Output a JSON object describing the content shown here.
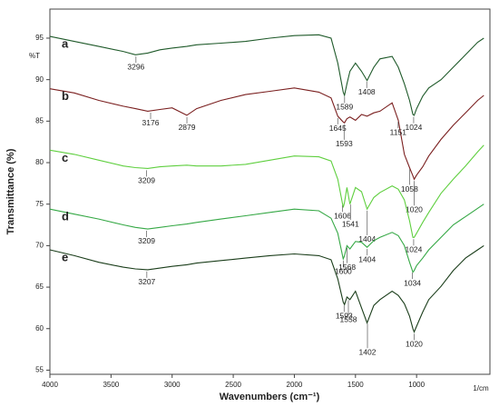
{
  "chart_data": {
    "type": "line",
    "x_label": "Wavenumbers (cm⁻¹)",
    "y_label": "Transmittance (%)",
    "y_unit_label": "%T",
    "x_unit_label": "1/cm",
    "xlim": [
      4000,
      400
    ],
    "ylim": [
      54.5,
      98.5
    ],
    "xticks": [
      4000,
      3500,
      3000,
      2500,
      2000,
      1500,
      1000
    ],
    "yticks": [
      55,
      60,
      65,
      70,
      75,
      80,
      85,
      90,
      95
    ],
    "x": [
      4000,
      3800,
      3600,
      3400,
      3300,
      3200,
      3100,
      3000,
      2880,
      2800,
      2600,
      2400,
      2200,
      2000,
      1800,
      1700,
      1645,
      1600,
      1590,
      1570,
      1545,
      1500,
      1450,
      1405,
      1350,
      1300,
      1200,
      1150,
      1100,
      1058,
      1030,
      1020,
      1000,
      950,
      900,
      800,
      700,
      600,
      500,
      450
    ],
    "series": [
      {
        "name": "a",
        "color": "#1f5a2a",
        "peaks": [
          3296,
          1589,
          1408,
          1024
        ],
        "values": [
          95.2,
          94.6,
          94,
          93.4,
          93.0,
          93.2,
          93.6,
          93.8,
          94,
          94.2,
          94.4,
          94.6,
          95,
          95.3,
          95.4,
          95,
          92,
          88.5,
          88.1,
          89.5,
          91,
          92,
          91,
          89.9,
          91.5,
          92.5,
          92.8,
          91.5,
          89.5,
          87.5,
          85.8,
          85.7,
          86.5,
          88,
          89,
          90,
          91.5,
          93,
          94.5,
          95
        ]
      },
      {
        "name": "b",
        "color": "#7a1f1f",
        "peaks": [
          3176,
          2879,
          1645,
          1593,
          1151,
          1058,
          1020
        ],
        "values": [
          88.9,
          88.4,
          87.5,
          86.8,
          86.5,
          86.2,
          86.4,
          86.6,
          85.7,
          86.5,
          87.5,
          88.2,
          88.6,
          89,
          88.5,
          87.8,
          85.6,
          84.9,
          84.8,
          85.3,
          85.5,
          85.1,
          85.8,
          85.6,
          86,
          86.2,
          87.2,
          85.1,
          81,
          79.4,
          78.4,
          78,
          78.5,
          79.5,
          80.8,
          82.8,
          84.5,
          86,
          87.5,
          88.1
        ]
      },
      {
        "name": "c",
        "color": "#5fcf3f",
        "peaks": [
          3209,
          1606,
          1541,
          1404,
          1024
        ],
        "values": [
          81.5,
          81,
          80.3,
          79.6,
          79.4,
          79.3,
          79.5,
          79.6,
          79.7,
          79.6,
          79.6,
          79.8,
          80.3,
          80.8,
          80.7,
          80.2,
          78,
          74.6,
          75.2,
          77,
          75,
          77,
          76.5,
          74.4,
          75.8,
          76.4,
          77.2,
          76.8,
          75.5,
          73,
          71,
          71,
          71.5,
          72.8,
          74,
          76.3,
          78,
          79.6,
          81.3,
          82.1
        ]
      },
      {
        "name": "d",
        "color": "#35a845",
        "peaks": [
          3209,
          1600,
          1568,
          1404,
          1034
        ],
        "values": [
          74.4,
          73.8,
          73.2,
          72.5,
          72.2,
          72,
          72.2,
          72.4,
          72.6,
          72.8,
          73.2,
          73.6,
          74,
          74.4,
          74.2,
          73.3,
          71.5,
          68.4,
          68.8,
          70,
          69.6,
          70.5,
          70.4,
          69.8,
          70.6,
          71,
          71.6,
          71.2,
          70,
          68,
          66.8,
          67,
          67.6,
          68.5,
          69.5,
          71,
          72.5,
          73.5,
          74.5,
          75
        ]
      },
      {
        "name": "e",
        "color": "#1a3d1a",
        "peaks": [
          3207,
          1593,
          1558,
          1402,
          1020
        ],
        "values": [
          69.5,
          68.8,
          68,
          67.4,
          67.2,
          67.1,
          67.3,
          67.5,
          67.7,
          67.9,
          68.2,
          68.5,
          68.8,
          69,
          68.8,
          68.3,
          66,
          63.2,
          62.9,
          63.8,
          63.5,
          64.5,
          62.5,
          60.7,
          62.8,
          63.5,
          64.5,
          64,
          63,
          61.5,
          60,
          59.6,
          60.3,
          62,
          63.5,
          65.1,
          67,
          68.5,
          69.5,
          70
        ]
      }
    ]
  }
}
